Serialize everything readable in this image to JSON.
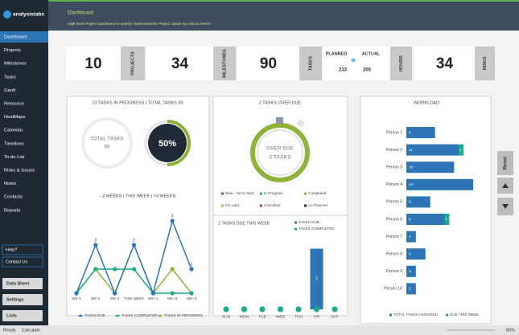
{
  "app": {
    "logo": "analysistabs",
    "title": "Dashboard",
    "subtitle": "High level Project Dashboard to quickly understand the Project Status by critical metrics"
  },
  "menu": [
    "Dashboard",
    "Projects",
    "Milestones",
    "Tasks",
    "Gantt",
    "Resource",
    "HeatMaps",
    "Calendar",
    "Timelines",
    "To-do List",
    "Risks & Issues",
    "Notes",
    "Contacts",
    "Reports"
  ],
  "help": [
    "Help?",
    "Contact Us"
  ],
  "sheets": [
    "Data Sheet",
    "Settings",
    "Lists"
  ],
  "kpis": [
    {
      "value": 10,
      "label": "PROJECTS"
    },
    {
      "value": 34,
      "label": "MILESTONES"
    },
    {
      "value": 90,
      "label": "TASKS"
    }
  ],
  "hours": {
    "planned_label": "PLANNED",
    "planned": 233,
    "actual_label": "ACTUAL",
    "actual": 205,
    "label": "HOURS"
  },
  "risks": {
    "value": 34,
    "label": "RISKS"
  },
  "progress": {
    "title": "23 TASKS IN PROGRESS | TOTAL TASKS 90",
    "ring_label": "TOTAL TASKS",
    "ring_value": 90,
    "percent": 50,
    "percent_label": "50%"
  },
  "overdue": {
    "title": "2 TASKS OVER DUE",
    "ring_label": "OVER DUE",
    "ring_value": "2 TASKS",
    "legend": [
      {
        "name": "New - Yet to Start",
        "color": "#2e75b6"
      },
      {
        "name": "In Progress",
        "color": "#1aaa8c"
      },
      {
        "name": "Completed",
        "color": "#8db33a"
      },
      {
        "name": "On Hold",
        "color": "#e6a23c"
      },
      {
        "name": "Cancelled",
        "color": "#c0392b"
      },
      {
        "name": "Un Planned",
        "color": "#1f2a36"
      }
    ]
  },
  "chart_data": [
    {
      "type": "line",
      "title": "- 3 WEEKS | THIS WEEK | +3 WEEKS",
      "categories": [
        "WK-3",
        "WK-2",
        "WK-1",
        "THIS WEEK",
        "WK+1",
        "WK+2",
        "WK+3"
      ],
      "series": [
        {
          "name": "TASKS DUE",
          "color": "#2e75b6",
          "values": [
            0,
            2,
            0,
            2,
            0,
            3,
            1
          ]
        },
        {
          "name": "TASKS COMPLETED",
          "color": "#1aaa8c",
          "values": [
            0,
            1,
            1,
            1,
            0,
            0,
            0
          ]
        },
        {
          "name": "TASKS IN PROGRESS",
          "color": "#8db33a",
          "values": [
            0,
            1,
            0,
            2,
            0,
            1,
            0
          ]
        }
      ],
      "ylim": [
        0,
        3.5
      ]
    },
    {
      "type": "bar",
      "title": "2 TASKS DUE THIS WEEK",
      "categories": [
        "SUN",
        "MON",
        "TUE",
        "WED",
        "THU",
        "FRI",
        "SAT"
      ],
      "series": [
        {
          "name": "TASKS DUE",
          "color": "#2e75b6",
          "values": [
            0,
            0,
            0,
            0,
            0,
            2,
            0
          ]
        },
        {
          "name": "TASKS COMPLETED",
          "color": "#1aaa8c",
          "values": [
            0,
            0,
            0,
            0,
            0,
            0,
            0
          ]
        }
      ],
      "ylim": [
        0,
        2.2
      ]
    },
    {
      "type": "barh",
      "title": "WORKLOAD",
      "categories": [
        "Person 1",
        "Person 2",
        "Person 3",
        "Person 4",
        "Person 5",
        "Person 6",
        "Person 7",
        "Person 8",
        "Person 9",
        "Person 10"
      ],
      "series": [
        {
          "name": "TOTAL TASKS ASSIGNED",
          "color": "#2e75b6",
          "values": [
            6,
            11,
            10,
            14,
            5,
            8,
            2,
            4,
            2,
            2
          ]
        },
        {
          "name": "DUE THIS WEEK",
          "color": "#1aaa8c",
          "values": [
            0,
            1,
            0,
            0,
            0,
            1,
            0,
            0,
            0,
            0
          ],
          "value_labels": [
            null,
            "1 Task",
            null,
            null,
            null,
            "1 Task",
            null,
            null,
            null,
            null
          ]
        }
      ],
      "xlim": [
        0,
        16
      ]
    }
  ],
  "buttons": [
    "Reset"
  ],
  "status": {
    "ready": "Ready",
    "calculate": "Calculate",
    "zoom": "85%"
  }
}
